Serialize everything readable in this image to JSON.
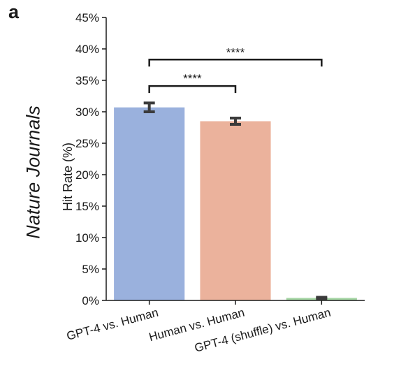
{
  "panel_letter": "a",
  "side_label": "Nature Journals",
  "chart_data": {
    "type": "bar",
    "categories": [
      "GPT-4 vs. Human",
      "Human vs. Human",
      "GPT-4 (shuffle) vs. Human"
    ],
    "values": [
      30.7,
      28.5,
      0.4
    ],
    "errors": [
      0.7,
      0.5,
      0.1
    ],
    "bar_colors": [
      "#9ab1dd",
      "#ebb29c",
      "#a5d6a4"
    ],
    "ylabel": "Hit Rate (%)",
    "ylim": [
      0,
      45
    ],
    "yticks": [
      0,
      5,
      10,
      15,
      20,
      25,
      30,
      35,
      40,
      45
    ],
    "ytick_labels": [
      "0%",
      "5%",
      "10%",
      "15%",
      "20%",
      "25%",
      "30%",
      "35%",
      "40%",
      "45%"
    ],
    "grid": false,
    "significance": [
      {
        "from": 0,
        "to": 1,
        "label": "****",
        "y": 34.1
      },
      {
        "from": 0,
        "to": 2,
        "label": "****",
        "y": 38.3
      }
    ]
  }
}
